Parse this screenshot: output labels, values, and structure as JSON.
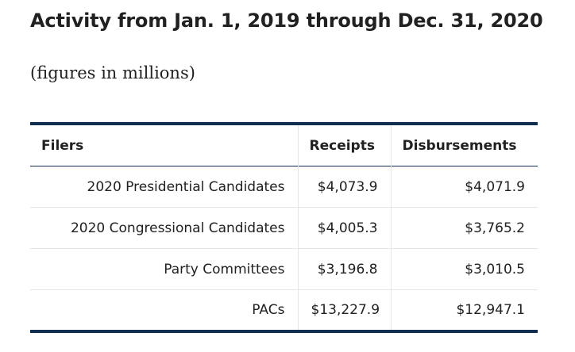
{
  "header": {
    "title": "Activity from Jan. 1, 2019 through Dec. 31, 2020",
    "subtitle": "(figures in millions)"
  },
  "table": {
    "columns": [
      "Filers",
      "Receipts",
      "Disbursements"
    ],
    "rows": [
      {
        "filer": "2020 Presidential Candidates",
        "receipts": "$4,073.9",
        "disbursements": "$4,071.9"
      },
      {
        "filer": "2020 Congressional Candidates",
        "receipts": "$4,005.3",
        "disbursements": "$3,765.2"
      },
      {
        "filer": "Party Committees",
        "receipts": "$3,196.8",
        "disbursements": "$3,010.5"
      },
      {
        "filer": "PACs",
        "receipts": "$13,227.9",
        "disbursements": "$12,947.1"
      }
    ]
  },
  "colors": {
    "rule": "#112e51",
    "divider": "#e6e6e6",
    "text": "#212121"
  }
}
